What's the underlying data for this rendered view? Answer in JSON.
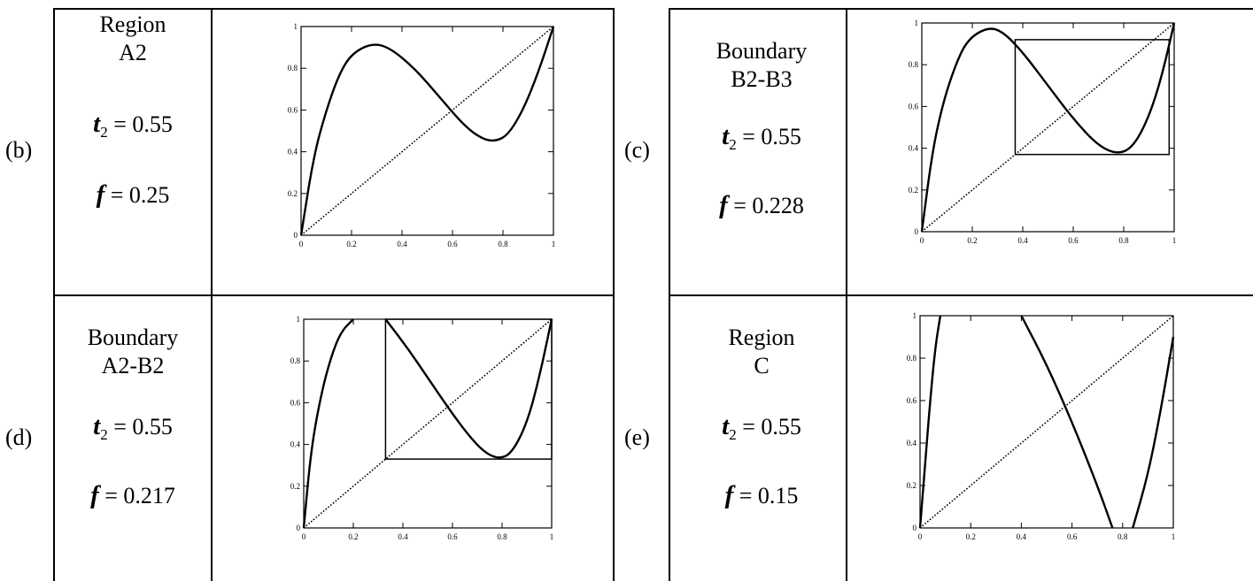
{
  "panels": [
    {
      "key": "b",
      "tag": "(b)",
      "label1": "Region",
      "label2": "A2",
      "tau_symbol": "t",
      "tau_sub": "2",
      "tau_value": "= 0.55",
      "f_symbol": "f",
      "f_value": "= 0.25"
    },
    {
      "key": "c",
      "tag": "(c)",
      "label1": "Boundary",
      "label2": "B2-B3",
      "tau_symbol": "t",
      "tau_sub": "2",
      "tau_value": "= 0.55",
      "f_symbol": "f",
      "f_value": "= 0.228"
    },
    {
      "key": "d",
      "tag": "(d)",
      "label1": "Boundary",
      "label2": "A2-B2",
      "tau_symbol": "t",
      "tau_sub": "2",
      "tau_value": "= 0.55",
      "f_symbol": "f",
      "f_value": "= 0.217"
    },
    {
      "key": "e",
      "tag": "(e)",
      "label1": "Region",
      "label2": "C",
      "tau_symbol": "t",
      "tau_sub": "2",
      "tau_value": "= 0.55",
      "f_symbol": "f",
      "f_value": "= 0.15"
    }
  ],
  "chart_data": [
    {
      "type": "line",
      "panel": "b",
      "xlim": [
        0,
        1
      ],
      "ylim": [
        0,
        1
      ],
      "x_ticks": [
        "0",
        "0.2",
        "0.4",
        "0.6",
        "0.8",
        "1"
      ],
      "y_ticks": [
        "0",
        "0.2",
        "0.4",
        "0.6",
        "0.8",
        "1"
      ],
      "series": [
        {
          "style": "solid",
          "x": [
            0,
            0.05,
            0.1,
            0.15,
            0.2,
            0.28,
            0.35,
            0.45,
            0.55,
            0.65,
            0.72,
            0.77,
            0.82,
            0.88,
            0.94,
            1.0
          ],
          "y": [
            0,
            0.38,
            0.6,
            0.77,
            0.87,
            0.92,
            0.9,
            0.8,
            0.66,
            0.52,
            0.46,
            0.45,
            0.48,
            0.6,
            0.78,
            1.0
          ]
        },
        {
          "style": "dotted",
          "x": [
            0,
            1
          ],
          "y": [
            0,
            1
          ]
        }
      ],
      "box": null
    },
    {
      "type": "line",
      "panel": "c",
      "xlim": [
        0,
        1
      ],
      "ylim": [
        0,
        1
      ],
      "x_ticks": [
        "0",
        "0.2",
        "0.4",
        "0.6",
        "0.8",
        "1"
      ],
      "y_ticks": [
        "0",
        "0.2",
        "0.4",
        "0.6",
        "0.8",
        "1"
      ],
      "series": [
        {
          "style": "solid",
          "x": [
            0,
            0.04,
            0.08,
            0.13,
            0.18,
            0.26,
            0.32,
            0.4,
            0.5,
            0.6,
            0.7,
            0.78,
            0.84,
            0.9,
            0.95,
            1.0
          ],
          "y": [
            0,
            0.37,
            0.6,
            0.79,
            0.92,
            0.98,
            0.96,
            0.86,
            0.7,
            0.54,
            0.41,
            0.37,
            0.41,
            0.55,
            0.74,
            1.0
          ]
        },
        {
          "style": "dotted",
          "x": [
            0,
            1
          ],
          "y": [
            0,
            1
          ]
        }
      ],
      "box": {
        "x0": 0.37,
        "x1": 0.98,
        "y0": 0.37,
        "y1": 0.92
      }
    },
    {
      "type": "line",
      "panel": "d",
      "xlim": [
        0,
        1
      ],
      "ylim": [
        0,
        1
      ],
      "x_ticks": [
        "0",
        "0.2",
        "0.4",
        "0.6",
        "0.8",
        "1"
      ],
      "y_ticks": [
        "0",
        "0.2",
        "0.4",
        "0.6",
        "0.8",
        "1"
      ],
      "series": [
        {
          "style": "solid",
          "x": [
            0,
            0.03,
            0.07,
            0.11,
            0.15,
            0.2
          ],
          "y": [
            0,
            0.38,
            0.64,
            0.82,
            0.94,
            1.0
          ]
        },
        {
          "style": "solid",
          "x": [
            0.33,
            0.42,
            0.5,
            0.58,
            0.66,
            0.73,
            0.79,
            0.84,
            0.9,
            0.95,
            1.0
          ],
          "y": [
            1.0,
            0.86,
            0.72,
            0.58,
            0.45,
            0.36,
            0.33,
            0.36,
            0.5,
            0.72,
            1.0
          ]
        },
        {
          "style": "dotted",
          "x": [
            0,
            1
          ],
          "y": [
            0,
            1
          ]
        }
      ],
      "box": {
        "x0": 0.33,
        "x1": 1.0,
        "y0": 0.33,
        "y1": 1.0
      }
    },
    {
      "type": "line",
      "panel": "e",
      "xlim": [
        0,
        1
      ],
      "ylim": [
        0,
        1
      ],
      "x_ticks": [
        "0",
        "0.2",
        "0.4",
        "0.6",
        "0.8",
        "1"
      ],
      "y_ticks": [
        "0",
        "0.2",
        "0.4",
        "0.6",
        "0.8",
        "1"
      ],
      "series": [
        {
          "style": "solid",
          "x": [
            0,
            0.02,
            0.04,
            0.06,
            0.08
          ],
          "y": [
            0,
            0.3,
            0.6,
            0.85,
            1.0
          ]
        },
        {
          "style": "solid",
          "x": [
            0.4,
            0.5,
            0.6,
            0.7,
            0.76
          ],
          "y": [
            1.0,
            0.77,
            0.5,
            0.2,
            0.0
          ]
        },
        {
          "style": "solid",
          "x": [
            0.84,
            0.9,
            0.95,
            1.0
          ],
          "y": [
            0.0,
            0.25,
            0.55,
            0.9
          ]
        },
        {
          "style": "dotted",
          "x": [
            0,
            1
          ],
          "y": [
            0,
            1
          ]
        }
      ],
      "box": null
    }
  ]
}
